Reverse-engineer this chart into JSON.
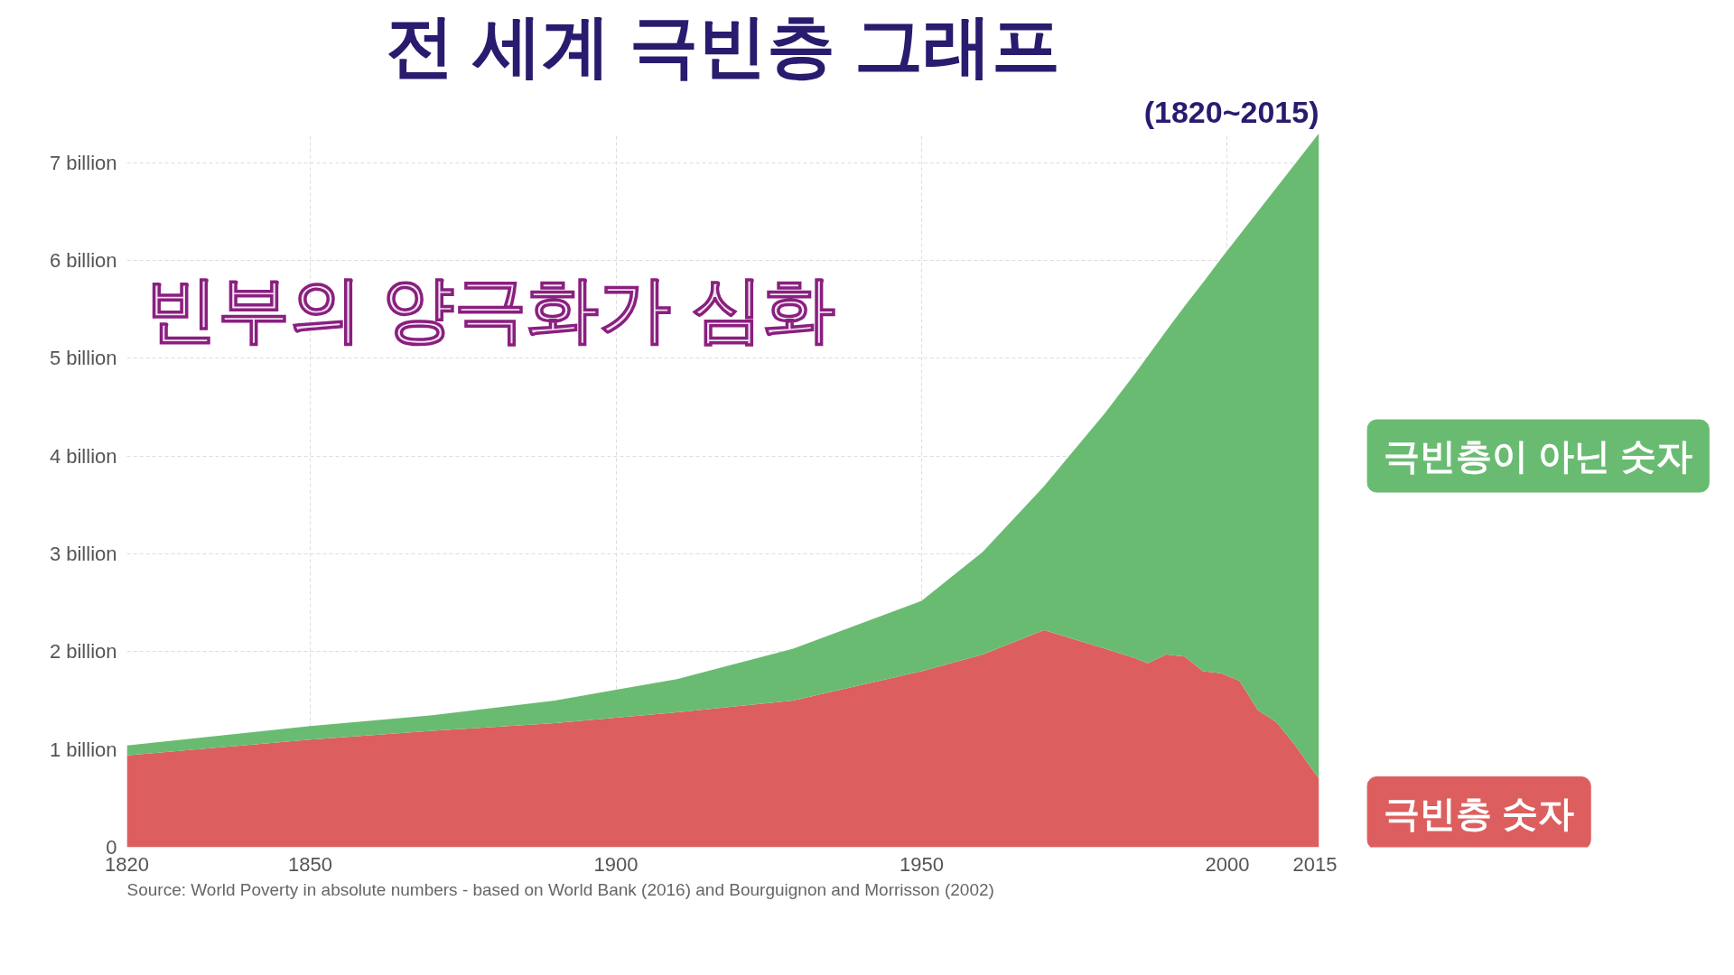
{
  "chart_data": {
    "type": "area",
    "stacked": true,
    "title": "전 세계 극빈층 그래프",
    "subtitle": "(1820~2015)",
    "x": [
      1820,
      1850,
      1870,
      1890,
      1910,
      1929,
      1950,
      1960,
      1970,
      1980,
      1985,
      1987,
      1990,
      1993,
      1996,
      1999,
      2002,
      2005,
      2008,
      2011,
      2015
    ],
    "series": [
      {
        "name": "극빈층 숫자",
        "color": "#dd5e5e",
        "values": [
          0.94,
          1.1,
          1.19,
          1.27,
          1.38,
          1.5,
          1.8,
          1.97,
          2.22,
          2.03,
          1.93,
          1.88,
          1.97,
          1.95,
          1.8,
          1.78,
          1.7,
          1.4,
          1.28,
          1.05,
          0.7
        ]
      },
      {
        "name": "극빈층이 아닌 숫자",
        "color": "#6abb72",
        "values": [
          0.1,
          0.14,
          0.16,
          0.23,
          0.34,
          0.53,
          0.72,
          1.05,
          1.47,
          2.41,
          2.92,
          3.14,
          3.31,
          3.58,
          3.97,
          4.24,
          4.56,
          5.1,
          5.46,
          5.93,
          6.6
        ]
      }
    ],
    "xlim": [
      1820,
      2015
    ],
    "xticks": [
      1820,
      1850,
      1900,
      1950,
      2000,
      2015
    ],
    "ylim": [
      0,
      7.3
    ],
    "yticks": [
      0,
      {
        "value": 1,
        "label": "1 billion"
      },
      {
        "value": 2,
        "label": "2 billion"
      },
      {
        "value": 3,
        "label": "3 billion"
      },
      {
        "value": 4,
        "label": "4 billion"
      },
      {
        "value": 5,
        "label": "5 billion"
      },
      {
        "value": 6,
        "label": "6 billion"
      },
      {
        "value": 7,
        "label": "7 billion"
      }
    ],
    "grid": true,
    "annotations": [
      "빈부의 양극화가 심화",
      "Source: World Poverty in absolute numbers - based on World Bank (2016) and Bourguignon and Morrisson (2002)"
    ]
  }
}
